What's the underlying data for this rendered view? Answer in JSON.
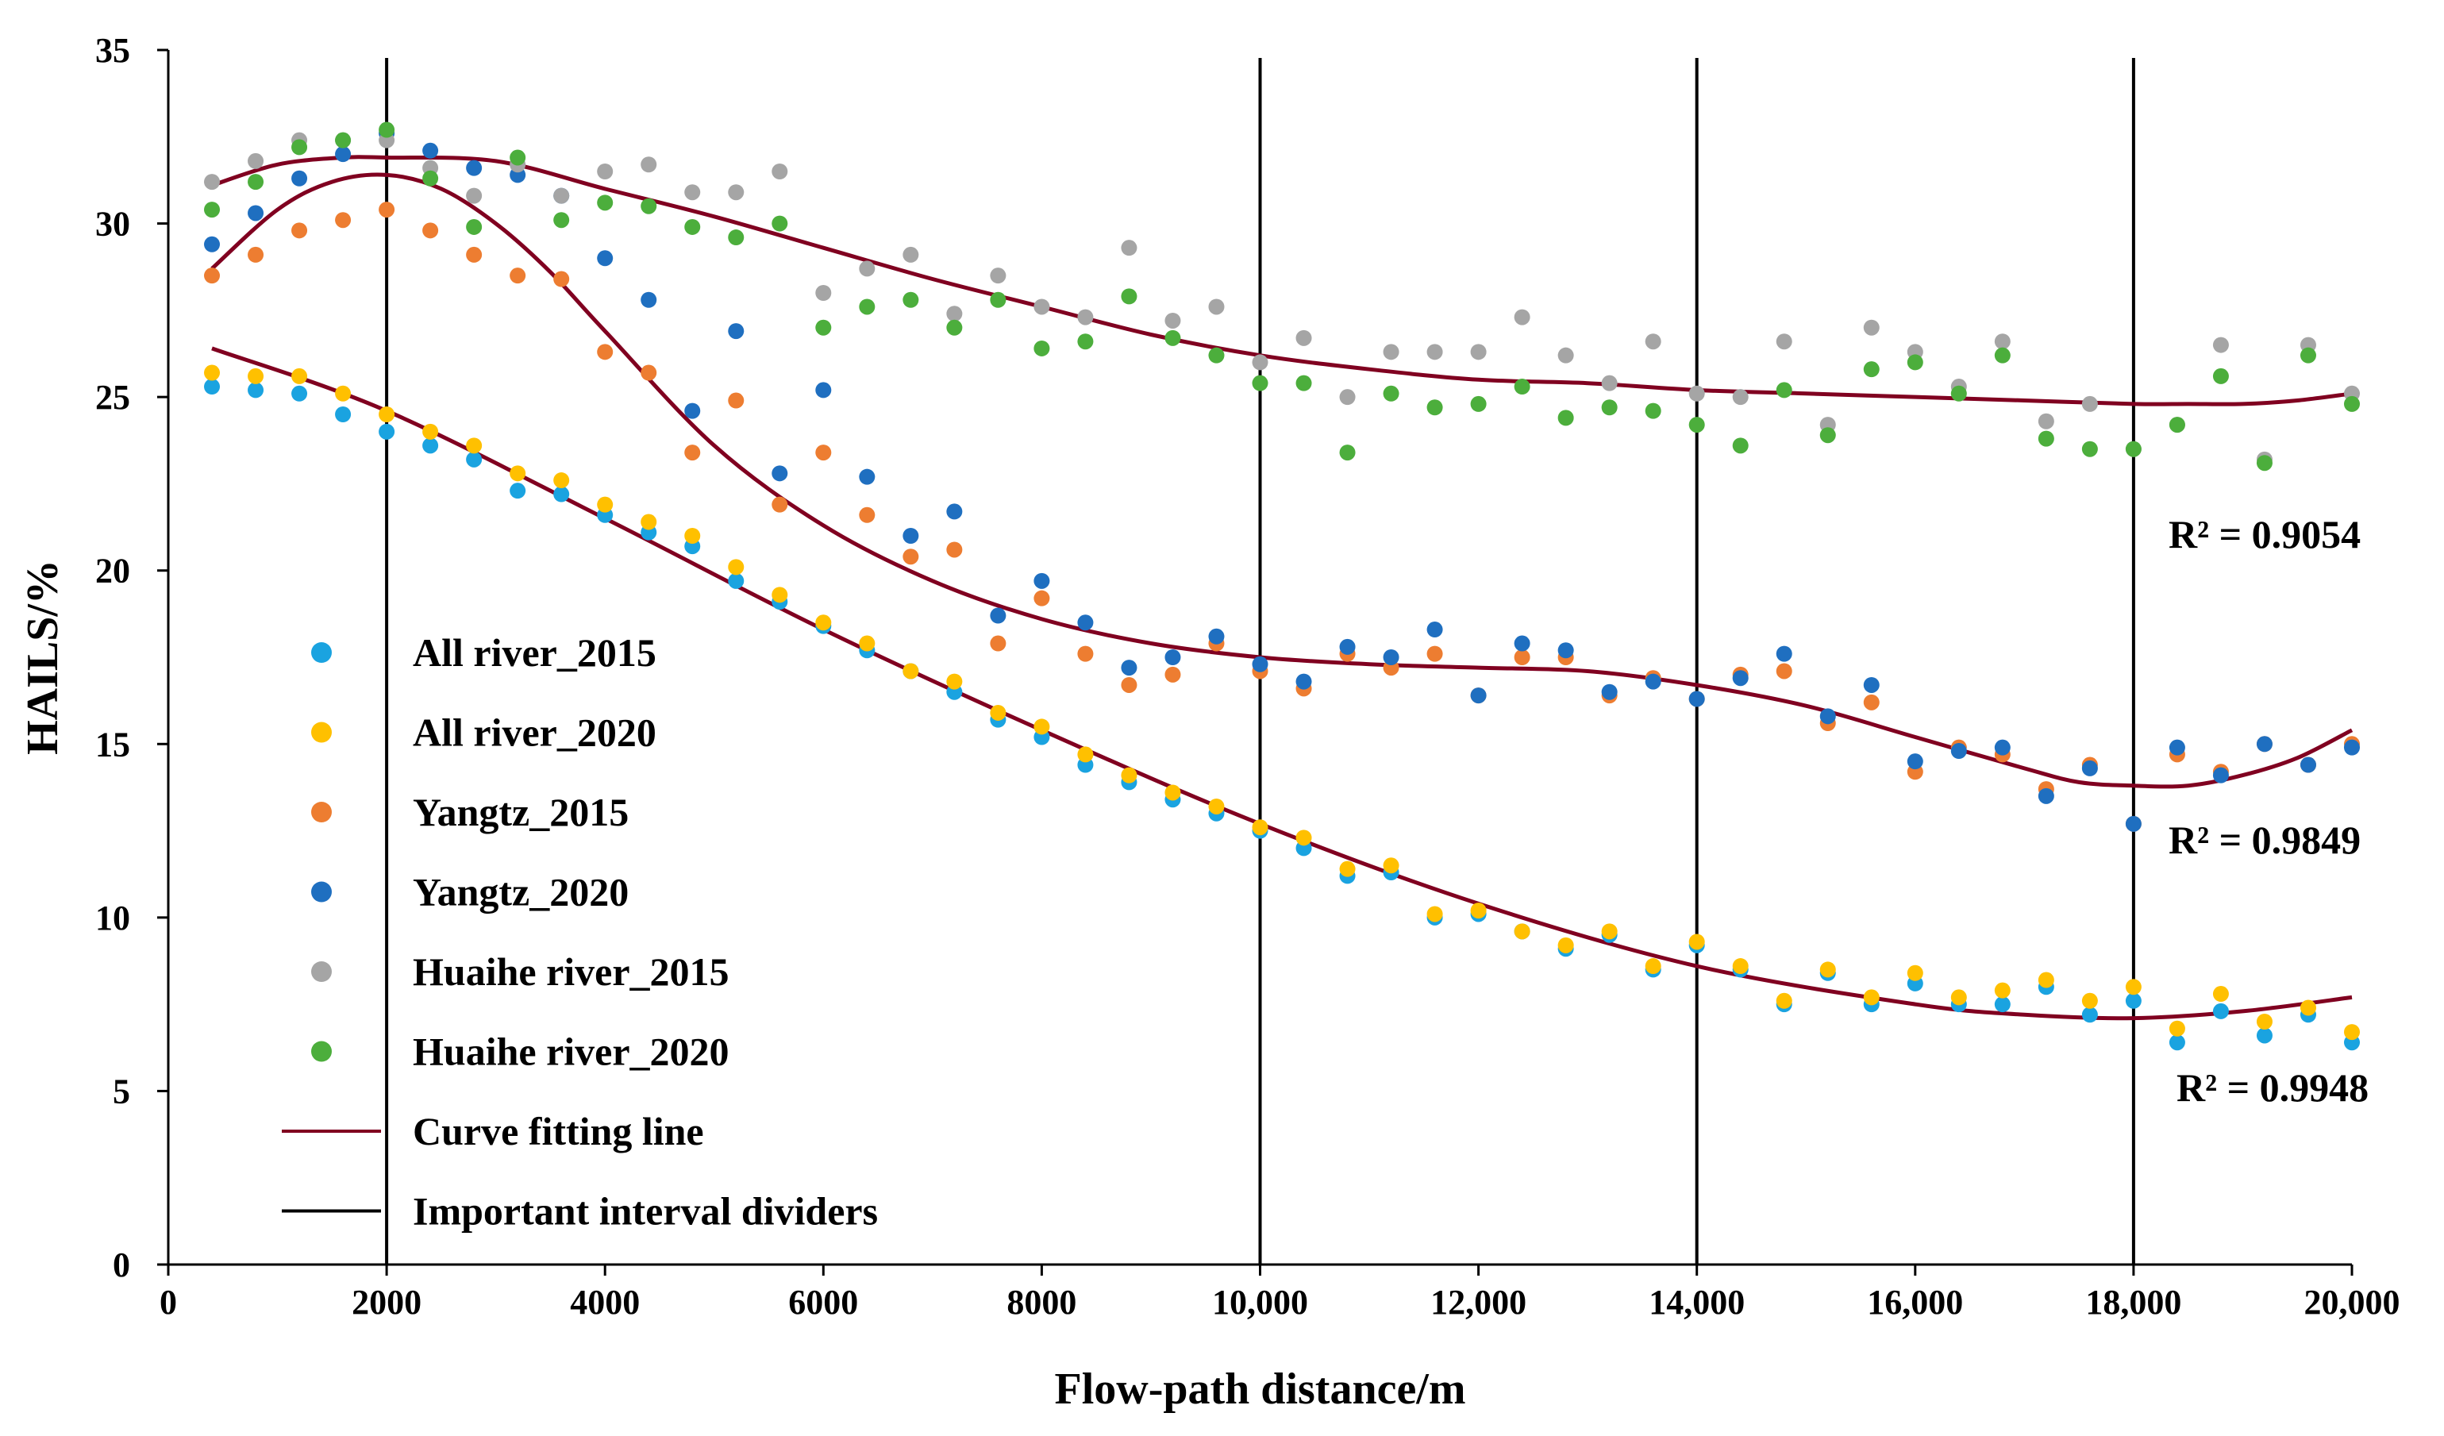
{
  "chart_data": {
    "type": "scatter",
    "title": "",
    "xlabel": "Flow-path distance/m",
    "ylabel": "HAILS/%",
    "xlim": [
      0,
      20000
    ],
    "ylim": [
      0,
      35
    ],
    "x_ticks": [
      0,
      2000,
      4000,
      6000,
      8000,
      10000,
      12000,
      14000,
      16000,
      18000,
      20000
    ],
    "x_tick_labels": [
      "0",
      "2000",
      "4000",
      "6000",
      "8000",
      "10,000",
      "12,000",
      "14,000",
      "16,000",
      "18,000",
      "20,000"
    ],
    "y_ticks": [
      0,
      5,
      10,
      15,
      20,
      25,
      30,
      35
    ],
    "y_tick_labels": [
      "0",
      "5",
      "10",
      "15",
      "20",
      "25",
      "30",
      "35"
    ],
    "grid": false,
    "x": [
      400,
      800,
      1200,
      1600,
      2000,
      2400,
      2800,
      3200,
      3600,
      4000,
      4400,
      4800,
      5200,
      5600,
      6000,
      6400,
      6800,
      7200,
      7600,
      8000,
      8400,
      8800,
      9200,
      9600,
      10000,
      10400,
      10800,
      11200,
      11600,
      12000,
      12400,
      12800,
      13200,
      13600,
      14000,
      14400,
      14800,
      15200,
      15600,
      16000,
      16400,
      16800,
      17200,
      17600,
      18000,
      18400,
      18800,
      19200,
      19600,
      20000
    ],
    "series": [
      {
        "name": "All river_2015",
        "color": "#1aa3e0",
        "values": [
          25.3,
          25.2,
          25.1,
          24.5,
          24.0,
          23.6,
          23.2,
          22.3,
          22.2,
          21.6,
          21.1,
          20.7,
          19.7,
          19.1,
          18.4,
          17.7,
          17.1,
          16.5,
          15.7,
          15.2,
          14.4,
          13.9,
          13.4,
          13.0,
          12.5,
          12.0,
          11.2,
          11.3,
          10.0,
          10.1,
          9.6,
          9.1,
          9.5,
          8.5,
          9.2,
          8.5,
          7.5,
          8.4,
          7.5,
          8.1,
          7.5,
          7.5,
          8.0,
          7.2,
          7.6,
          6.4,
          7.3,
          6.6,
          7.2,
          6.4
        ]
      },
      {
        "name": "All river_2020",
        "color": "#ffc000",
        "values": [
          25.7,
          25.6,
          25.6,
          25.1,
          24.5,
          24.0,
          23.6,
          22.8,
          22.6,
          21.9,
          21.4,
          21.0,
          20.1,
          19.3,
          18.5,
          17.9,
          17.1,
          16.8,
          15.9,
          15.5,
          14.7,
          14.1,
          13.6,
          13.2,
          12.6,
          12.3,
          11.4,
          11.5,
          10.1,
          10.2,
          9.6,
          9.2,
          9.6,
          8.6,
          9.3,
          8.6,
          7.6,
          8.5,
          7.7,
          8.4,
          7.7,
          7.9,
          8.2,
          7.6,
          8.0,
          6.8,
          7.8,
          7.0,
          7.4,
          6.7
        ]
      },
      {
        "name": "Yangtz_2015",
        "color": "#ed7d31",
        "values": [
          28.5,
          29.1,
          29.8,
          30.1,
          30.4,
          29.8,
          29.1,
          28.5,
          28.4,
          26.3,
          25.7,
          23.4,
          24.9,
          21.9,
          23.4,
          21.6,
          20.4,
          20.6,
          17.9,
          19.2,
          17.6,
          16.7,
          17.0,
          17.9,
          17.1,
          16.6,
          17.6,
          17.2,
          17.6,
          16.4,
          17.5,
          17.5,
          16.4,
          16.9,
          16.3,
          17.0,
          17.1,
          15.6,
          16.2,
          14.2,
          14.9,
          14.7,
          13.7,
          14.4,
          12.7,
          14.7,
          14.2,
          15.0,
          14.4,
          15.0
        ]
      },
      {
        "name": "Yangtz_2020",
        "color": "#1f6fc0",
        "values": [
          29.4,
          30.3,
          31.3,
          32.0,
          32.6,
          32.1,
          31.6,
          31.4,
          30.8,
          29.0,
          27.8,
          24.6,
          26.9,
          22.8,
          25.2,
          22.7,
          21.0,
          21.7,
          18.7,
          19.7,
          18.5,
          17.2,
          17.5,
          18.1,
          17.3,
          16.8,
          17.8,
          17.5,
          18.3,
          16.4,
          17.9,
          17.7,
          16.5,
          16.8,
          16.3,
          16.9,
          17.6,
          15.8,
          16.7,
          14.5,
          14.8,
          14.9,
          13.5,
          14.3,
          12.7,
          14.9,
          14.1,
          15.0,
          14.4,
          14.9
        ]
      },
      {
        "name": "Huaihe river_2015",
        "color": "#a5a5a5",
        "values": [
          31.2,
          31.8,
          32.4,
          32.4,
          32.4,
          31.6,
          30.8,
          31.7,
          30.8,
          31.5,
          31.7,
          30.9,
          30.9,
          31.5,
          28.0,
          28.7,
          29.1,
          27.4,
          28.5,
          27.6,
          27.3,
          29.3,
          27.2,
          27.6,
          26.0,
          26.7,
          25.0,
          26.3,
          26.3,
          26.3,
          27.3,
          26.2,
          25.4,
          26.6,
          25.1,
          25.0,
          26.6,
          24.2,
          27.0,
          26.3,
          25.3,
          26.6,
          24.3,
          24.8,
          23.5,
          24.2,
          26.5,
          23.2,
          26.5,
          25.1
        ]
      },
      {
        "name": "Huaihe river_2020",
        "color": "#4cae3c",
        "values": [
          30.4,
          31.2,
          32.2,
          32.4,
          32.7,
          31.3,
          29.9,
          31.9,
          30.1,
          30.6,
          30.5,
          29.9,
          29.6,
          30.0,
          27.0,
          27.6,
          27.8,
          27.0,
          27.8,
          26.4,
          26.6,
          27.9,
          26.7,
          26.2,
          25.4,
          25.4,
          23.4,
          25.1,
          24.7,
          24.8,
          25.3,
          24.4,
          24.7,
          24.6,
          24.2,
          23.6,
          25.2,
          23.9,
          25.8,
          26.0,
          25.1,
          26.2,
          23.8,
          23.5,
          23.5,
          24.2,
          25.6,
          23.1,
          26.2,
          24.8
        ]
      }
    ],
    "fit_curves": [
      {
        "name": "Curve fitting line",
        "group": "Huaihe river",
        "r_squared_label": "R² = 0.9054",
        "x": [
          400,
          1000,
          1600,
          2000,
          3000,
          4000,
          5000,
          6000,
          7000,
          8000,
          9000,
          10000,
          11000,
          12000,
          13000,
          14000,
          15000,
          16000,
          17000,
          18000,
          18500,
          19000,
          19500,
          20000
        ],
        "y": [
          31.1,
          31.7,
          31.9,
          31.9,
          31.8,
          31.0,
          30.2,
          29.3,
          28.4,
          27.6,
          26.8,
          26.2,
          25.8,
          25.5,
          25.4,
          25.2,
          25.1,
          25.0,
          24.9,
          24.8,
          24.8,
          24.8,
          24.9,
          25.1
        ]
      },
      {
        "name": "Curve fitting line",
        "group": "Yangtz",
        "r_squared_label": "R² = 0.9849",
        "x": [
          400,
          1000,
          1500,
          2000,
          2500,
          3000,
          3500,
          4000,
          5000,
          6000,
          7000,
          8000,
          9000,
          10000,
          11000,
          12000,
          13000,
          14000,
          15000,
          16000,
          17000,
          17500,
          18000,
          18500,
          19000,
          19500,
          20000
        ],
        "y": [
          28.7,
          30.4,
          31.2,
          31.4,
          31.0,
          30.0,
          28.6,
          26.9,
          23.6,
          21.3,
          19.7,
          18.6,
          17.9,
          17.5,
          17.3,
          17.2,
          17.1,
          16.7,
          16.1,
          15.2,
          14.3,
          13.9,
          13.8,
          13.8,
          14.1,
          14.6,
          15.4
        ]
      },
      {
        "name": "Curve fitting line",
        "group": "All river",
        "r_squared_label": "R² = 0.9948",
        "x": [
          400,
          2000,
          4000,
          6000,
          8000,
          10000,
          12000,
          14000,
          16000,
          17000,
          18000,
          19000,
          20000
        ],
        "y": [
          26.4,
          24.6,
          21.5,
          18.3,
          15.4,
          12.7,
          10.4,
          8.6,
          7.5,
          7.2,
          7.1,
          7.3,
          7.7
        ]
      }
    ],
    "interval_dividers": {
      "name": "Important interval dividers",
      "x": [
        2000,
        10000,
        14000,
        18000
      ]
    },
    "legend": [
      {
        "label": "All river_2015",
        "kind": "marker",
        "color": "#1aa3e0"
      },
      {
        "label": "All river_2020",
        "kind": "marker",
        "color": "#ffc000"
      },
      {
        "label": "Yangtz_2015",
        "kind": "marker",
        "color": "#ed7d31"
      },
      {
        "label": "Yangtz_2020",
        "kind": "marker",
        "color": "#1f6fc0"
      },
      {
        "label": "Huaihe river_2015",
        "kind": "marker",
        "color": "#a5a5a5"
      },
      {
        "label": "Huaihe river_2020",
        "kind": "marker",
        "color": "#4cae3c"
      },
      {
        "label": "Curve fitting line",
        "kind": "line",
        "color": "#800020"
      },
      {
        "label": "Important interval dividers",
        "kind": "line",
        "color": "#000000"
      }
    ],
    "legend_placement": "left-middle",
    "colors": {
      "fit_curve": "#800020",
      "divider": "#000000",
      "axis": "#000000"
    }
  }
}
